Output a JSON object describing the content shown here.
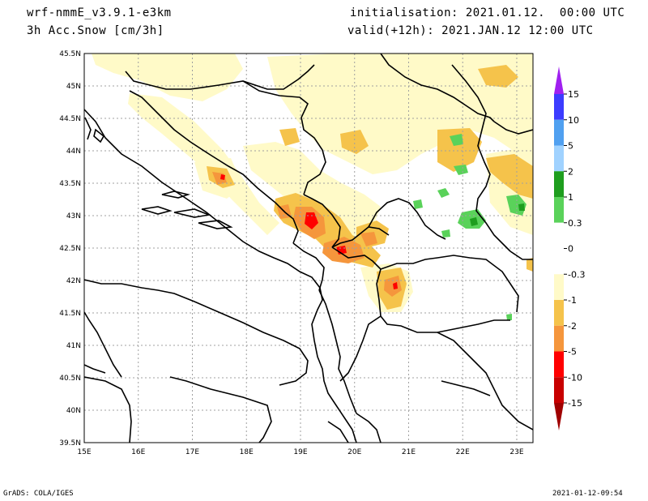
{
  "header": {
    "model": "wrf-nmmE_v3.9.1-e3km",
    "variable": "3h Acc.Snow [cm/3h]",
    "init": "initialisation: 2021.01.12.  00:00 UTC",
    "valid": "valid(+12h): 2021.JAN.12 12:00 UTC"
  },
  "footer": {
    "credit": "GrADS: COLA/IGES",
    "timestamp": "2021-01-12-09:54"
  },
  "map": {
    "lat_labels": [
      "45.5N",
      "45N",
      "44.5N",
      "44N",
      "43.5N",
      "43N",
      "42.5N",
      "42N",
      "41.5N",
      "41N",
      "40.5N",
      "40N",
      "39.5N"
    ],
    "lon_labels": [
      "15E",
      "16E",
      "17E",
      "18E",
      "19E",
      "20E",
      "21E",
      "22E",
      "23E"
    ],
    "lon_range": [
      15,
      23.3
    ],
    "lat_range": [
      39.5,
      45.5
    ]
  },
  "legend": {
    "bins": [
      {
        "label": "15",
        "color": "#a020f0"
      },
      {
        "label": "10",
        "color": "#3c3cff"
      },
      {
        "label": "5",
        "color": "#50a0f0"
      },
      {
        "label": "2",
        "color": "#a0d2ff"
      },
      {
        "label": "1",
        "color": "#1e9e1e"
      },
      {
        "label": "0.3",
        "color": "#5ad25a"
      },
      {
        "label": "0",
        "color": "#ffffff"
      },
      {
        "label": "-0.3",
        "color": "#ffffff"
      },
      {
        "label": "-1",
        "color": "#fffac8"
      },
      {
        "label": "-2",
        "color": "#f5c34b"
      },
      {
        "label": "-5",
        "color": "#f5963c"
      },
      {
        "label": "-10",
        "color": "#ff0000"
      },
      {
        "label": "-15",
        "color": "#c80000"
      }
    ],
    "bottom_color": "#a00000"
  },
  "colors": {
    "light_yellow": "#fffac8",
    "gold": "#f5c34b",
    "orange": "#f5963c",
    "red": "#ff0000",
    "green_light": "#5ad25a",
    "green_dark": "#1e9e1e"
  }
}
